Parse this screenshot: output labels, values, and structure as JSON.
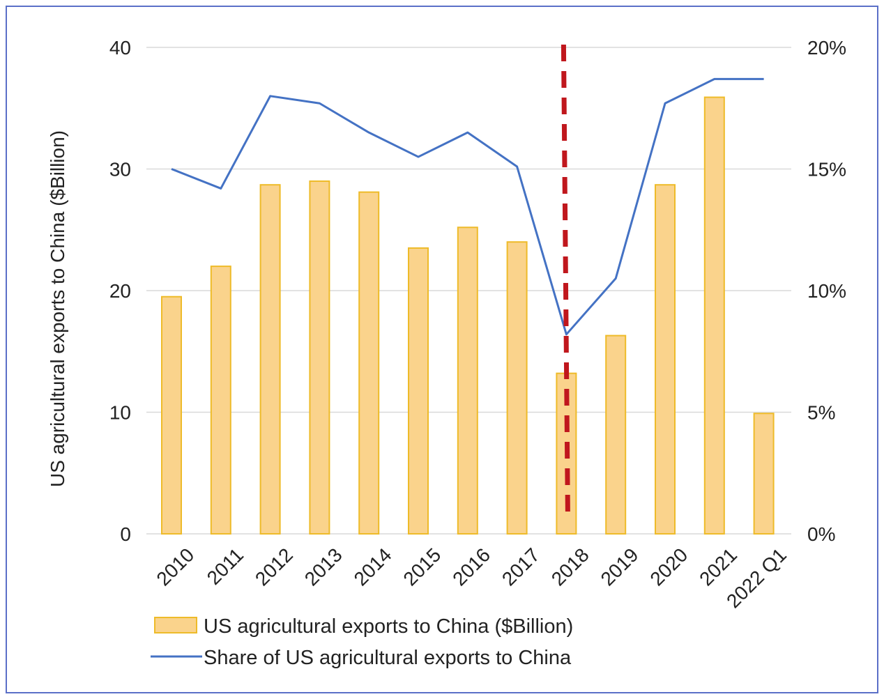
{
  "chart_data": {
    "type": "bar",
    "ylabel": "US agricultural exports to China ($Billion)",
    "categories": [
      "2010",
      "2011",
      "2012",
      "2013",
      "2014",
      "2015",
      "2016",
      "2017",
      "2018",
      "2019",
      "2020",
      "2021",
      "2022 Q1"
    ],
    "series": [
      {
        "name": "US agricultural exports to China ($Billion)",
        "type": "bar",
        "axis": "left",
        "values": [
          19.5,
          22.0,
          28.7,
          29.0,
          28.1,
          23.5,
          25.2,
          24.0,
          13.2,
          16.3,
          28.7,
          35.9,
          9.9
        ]
      },
      {
        "name": "Share of US agricultural exports to China",
        "type": "line",
        "axis": "right",
        "values": [
          15.0,
          14.2,
          18.0,
          17.7,
          16.5,
          15.5,
          16.5,
          15.1,
          8.2,
          10.5,
          17.7,
          18.7,
          18.7
        ]
      }
    ],
    "ylim": [
      0,
      40
    ],
    "yticks": [
      "0",
      "10",
      "20",
      "30",
      "40"
    ],
    "y2lim": [
      0,
      20
    ],
    "y2ticks": [
      "0%",
      "5%",
      "10%",
      "15%",
      "20%"
    ],
    "annotation": {
      "type": "dashed-vertical-line",
      "at_category": "2018",
      "color": "#c0171d"
    },
    "grid": true,
    "legend_position": "bottom",
    "colors": {
      "bar_fill": "#fad38c",
      "bar_stroke": "#eebb29",
      "line": "#4472c4",
      "grid": "#d9d9d9",
      "frame": "#5a6fc7"
    }
  }
}
